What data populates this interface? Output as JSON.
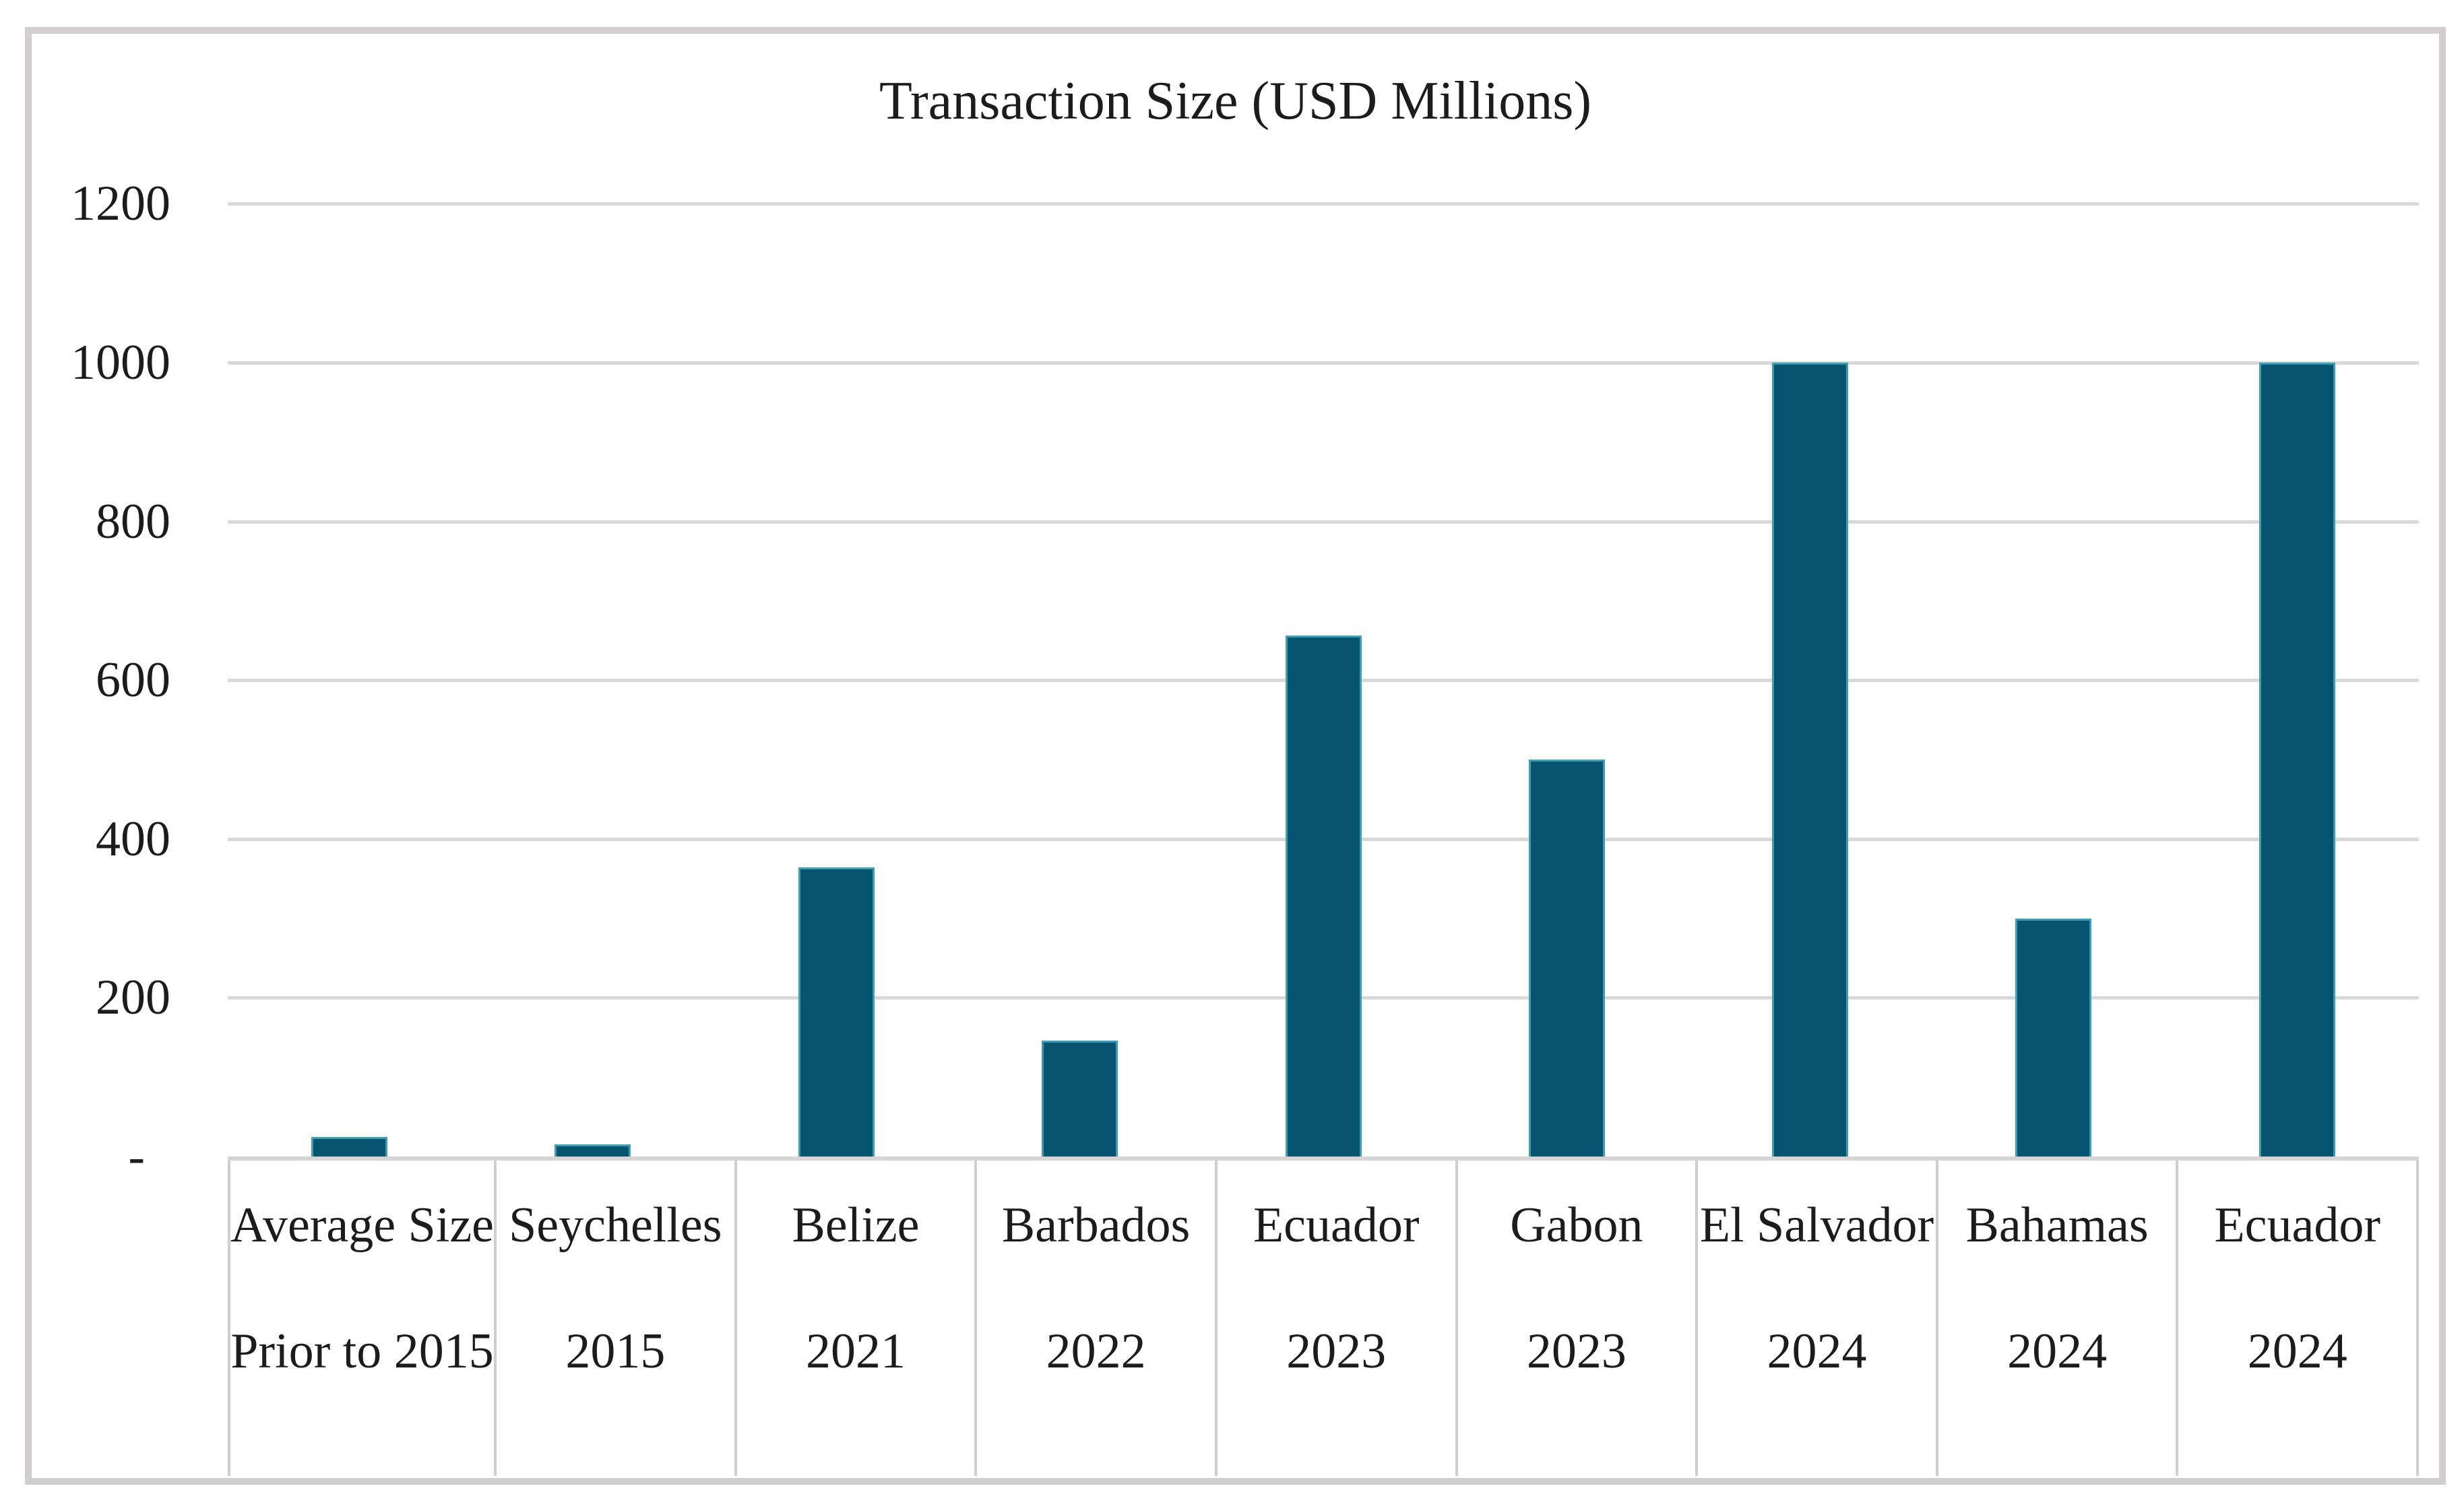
{
  "page": {
    "background": "#ffffff",
    "frame_border_color": "#d0cece"
  },
  "chart_data": {
    "type": "bar",
    "title": "Transaction Size (USD Millions)",
    "categories": [
      "Average Size",
      "Seychelles",
      "Belize",
      "Barbados",
      "Ecuador",
      "Gabon",
      "El Salvador",
      "Bahamas",
      "Ecuador"
    ],
    "category_years": [
      "Prior to 2015",
      "2015",
      "2021",
      "2022",
      "2023",
      "2023",
      "2024",
      "2024",
      "2024"
    ],
    "values": [
      25,
      15,
      364,
      146,
      656,
      500,
      1000,
      300,
      1000
    ],
    "ylabel": "",
    "xlabel": "",
    "ylim": [
      0,
      1200
    ],
    "ytick_interval": 200,
    "yticks": [
      {
        "label": "1200",
        "value": 1200
      },
      {
        "label": "1000",
        "value": 1000
      },
      {
        "label": "800",
        "value": 800
      },
      {
        "label": "600",
        "value": 600
      },
      {
        "label": "400",
        "value": 400
      },
      {
        "label": "200",
        "value": 200
      },
      {
        "label": "-",
        "value": 0
      }
    ],
    "grid": true,
    "legend": false,
    "bar_color": "#075470",
    "bar_edge_color": "#3f9db3",
    "gridline_color": "#d9d9d9",
    "axis_table_line_color": "#d0cece",
    "text_color": "#1c1c1c"
  }
}
